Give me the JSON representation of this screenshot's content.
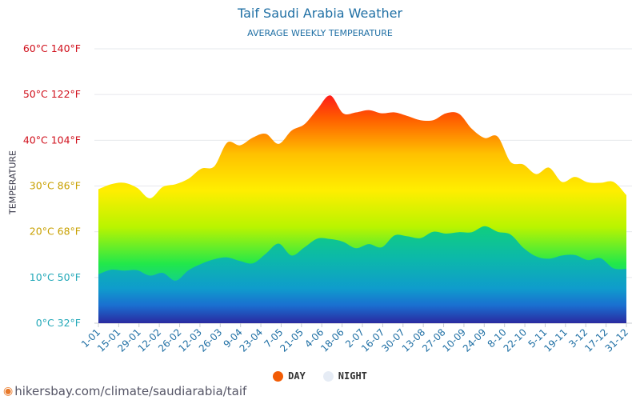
{
  "header": {
    "title": "Taif Saudi Arabia Weather",
    "subtitle": "AVERAGE WEEKLY TEMPERATURE"
  },
  "legend": {
    "day_label": "DAY",
    "night_label": "NIGHT",
    "day_color": "#f25c05",
    "night_color": "#e6ecf5"
  },
  "footer": {
    "url": "hikersbay.com/climate/saudiarabia/taif"
  },
  "chart_data": {
    "type": "area",
    "title": "Taif Saudi Arabia Weather",
    "subtitle": "AVERAGE WEEKLY TEMPERATURE",
    "ylabel": "TEMPERATURE",
    "xlabel": "",
    "ylim": [
      0,
      60
    ],
    "y_ticks": [
      {
        "c": 0,
        "label": "0°C 32°F"
      },
      {
        "c": 10,
        "label": "10°C 50°F"
      },
      {
        "c": 20,
        "label": "20°C 68°F"
      },
      {
        "c": 30,
        "label": "30°C 86°F"
      },
      {
        "c": 40,
        "label": "40°C 104°F"
      },
      {
        "c": 50,
        "label": "50°C 122°F"
      },
      {
        "c": 60,
        "label": "60°C 140°F"
      }
    ],
    "x_tick_labels": [
      "1-01",
      "15-01",
      "29-01",
      "12-02",
      "26-02",
      "12-03",
      "26-03",
      "9-04",
      "23-04",
      "7-05",
      "21-05",
      "4-06",
      "18-06",
      "2-07",
      "16-07",
      "30-07",
      "13-08",
      "27-08",
      "10-09",
      "24-09",
      "8-10",
      "22-10",
      "5-11",
      "19-11",
      "3-12",
      "17-12",
      "31-12"
    ],
    "grid": true,
    "legend_position": "bottom",
    "series": [
      {
        "name": "DAY",
        "values": [
          29.3,
          30.4,
          30.7,
          29.6,
          27.3,
          29.8,
          30.4,
          31.6,
          33.8,
          34.3,
          39.5,
          38.9,
          40.6,
          41.4,
          39.2,
          42.1,
          43.5,
          46.8,
          49.8,
          45.9,
          46.1,
          46.6,
          45.9,
          46.1,
          45.3,
          44.4,
          44.4,
          45.9,
          45.8,
          42.5,
          40.5,
          40.8,
          35.3,
          34.7,
          32.6,
          34.0,
          30.9,
          32.0,
          30.8,
          30.7,
          30.9,
          28.0
        ]
      },
      {
        "name": "NIGHT",
        "values": [
          10.7,
          11.7,
          11.5,
          11.6,
          10.4,
          11.0,
          9.3,
          11.6,
          13.0,
          14.0,
          14.4,
          13.6,
          13.1,
          15.2,
          17.4,
          14.8,
          16.6,
          18.5,
          18.4,
          17.8,
          16.4,
          17.3,
          16.6,
          19.2,
          19.0,
          18.6,
          20.0,
          19.6,
          19.9,
          19.9,
          21.2,
          20.0,
          19.4,
          16.5,
          14.6,
          14.1,
          14.8,
          14.9,
          13.8,
          14.2,
          12.0,
          11.9
        ]
      }
    ]
  }
}
